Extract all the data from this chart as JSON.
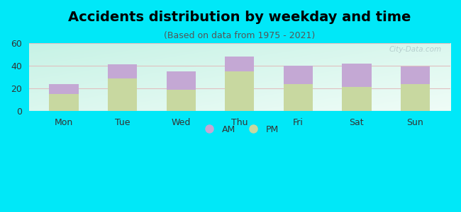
{
  "title": "Accidents distribution by weekday and time",
  "subtitle": "(Based on data from 1975 - 2021)",
  "categories": [
    "Mon",
    "Tue",
    "Wed",
    "Thu",
    "Fri",
    "Sat",
    "Sun"
  ],
  "pm_values": [
    15,
    29,
    19,
    35,
    24,
    21,
    24
  ],
  "am_values": [
    9,
    12,
    16,
    13,
    16,
    21,
    15
  ],
  "am_color": "#c4a8d4",
  "pm_color": "#c8d8a0",
  "ylim": [
    0,
    60
  ],
  "yticks": [
    0,
    20,
    40,
    60
  ],
  "background_color": "#00e8f8",
  "title_fontsize": 14,
  "subtitle_fontsize": 9,
  "tick_fontsize": 9,
  "legend_fontsize": 9,
  "figsize": [
    6.5,
    3.0
  ],
  "dpi": 100,
  "bar_width": 0.5
}
